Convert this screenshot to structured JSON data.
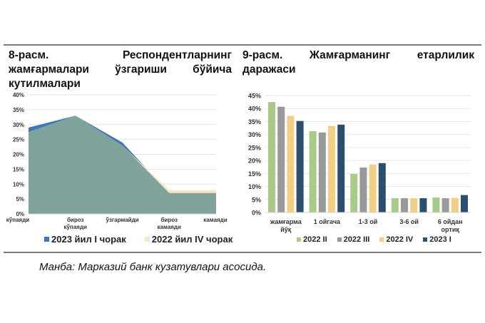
{
  "fig8": {
    "title_lines": [
      [
        "8-расм.",
        "Респондентларнинг"
      ],
      [
        "жамғармалари",
        "ўзгариши",
        "бўйича"
      ],
      [
        "кутилмалари"
      ]
    ],
    "legend": [
      {
        "label": "2023 йил I чорак",
        "color": "#3f77b8"
      },
      {
        "label": "2022 йил IV чорак",
        "color": "#f8e6c3"
      }
    ]
  },
  "fig9": {
    "title_lines": [
      [
        "9-расм.",
        "Жамғарманинг",
        "етарлилик"
      ],
      [
        "даражаси"
      ]
    ],
    "legend": [
      {
        "label": "2022 II",
        "color": "#a9cb8a"
      },
      {
        "label": "2022 III",
        "color": "#999999"
      },
      {
        "label": "2022 IV",
        "color": "#f2cf87"
      },
      {
        "label": "2023 I",
        "color": "#2c4e6e"
      }
    ]
  },
  "source": "Манба: Марказий банк кузатувлари асосида.",
  "chart_data": [
    {
      "type": "area",
      "title": "8-расм. Респондентларнинг жамғармалари ўзгариши бўйича кутилмалари",
      "categories": [
        "кўпаяди",
        "бироз кўпаяди",
        "ўзгармайди",
        "бироз камаяди",
        "камаяди"
      ],
      "category_lines": [
        [
          "кўпаяди"
        ],
        [
          "бироз",
          "кўпаяди"
        ],
        [
          "ўзгармайди"
        ],
        [
          "бироз",
          "камаяди"
        ],
        [
          "камаяди"
        ]
      ],
      "series": [
        {
          "name": "2023 йил I чорак",
          "values": [
            29,
            33,
            24,
            7,
            7
          ],
          "color": "#3f77b8"
        },
        {
          "name": "2022 йил IV чорак",
          "values": [
            27.5,
            33,
            23,
            8,
            8
          ],
          "color": "#f8e6c3"
        }
      ],
      "overlap_color": "#7fa39c",
      "yticks": [
        "0%",
        "5%",
        "10%",
        "15%",
        "20%",
        "25%",
        "30%",
        "35%",
        "40%"
      ],
      "ylim": [
        0,
        40
      ],
      "xlabel": "",
      "ylabel": "",
      "grid": true,
      "legend_position": "bottom"
    },
    {
      "type": "bar",
      "title": "9-расм. Жамғарманинг етарлилик даражаси",
      "categories": [
        "жамғарма йўқ",
        "1 ойгача",
        "1-3 ой",
        "3-6 ой",
        "6 ойдан ортиқ"
      ],
      "category_lines": [
        [
          "жамғарма",
          "йўқ"
        ],
        [
          "1 ойгача"
        ],
        [
          "1-3 ой"
        ],
        [
          "3-6 ой"
        ],
        [
          "6 ойдан",
          "ортиқ"
        ]
      ],
      "series": [
        {
          "name": "2022 II",
          "values": [
            42.5,
            31.3,
            14.8,
            5.5,
            5.8
          ],
          "color": "#a9cb8a"
        },
        {
          "name": "2022 III",
          "values": [
            40.7,
            30.8,
            17.3,
            5.5,
            5.5
          ],
          "color": "#999999"
        },
        {
          "name": "2022 IV",
          "values": [
            37.2,
            33.3,
            18.5,
            5.5,
            5.6
          ],
          "color": "#f2cf87"
        },
        {
          "name": "2023 I",
          "values": [
            35.2,
            33.8,
            19.0,
            5.5,
            6.7
          ],
          "color": "#2c4e6e"
        }
      ],
      "yticks": [
        "0%",
        "5%",
        "10%",
        "15%",
        "20%",
        "25%",
        "30%",
        "35%",
        "40%",
        "45%"
      ],
      "ylim": [
        0,
        45
      ],
      "xlabel": "",
      "ylabel": "",
      "grid": true,
      "legend_position": "bottom"
    }
  ]
}
